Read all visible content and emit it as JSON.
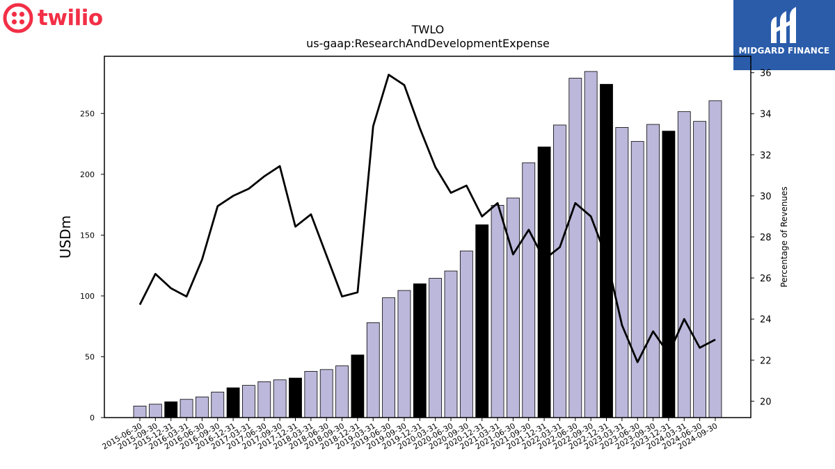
{
  "logos": {
    "company": {
      "text": "twilio",
      "color": "#f22f46"
    },
    "publisher": {
      "text": "MIDGARD FINANCE",
      "color": "#2a5caa"
    }
  },
  "chart_data": {
    "type": "bar",
    "title": "TWLO",
    "subtitle": "us-gaap:ResearchAndDevelopmentExpense",
    "ylabel": "USDm",
    "y2label": "Percentage of Revenues",
    "ylim": [
      0,
      297
    ],
    "y2lim": [
      19.2,
      36.8
    ],
    "yticks": [
      0,
      50,
      100,
      150,
      200,
      250
    ],
    "y2ticks": [
      20,
      22,
      24,
      26,
      28,
      30,
      32,
      34,
      36
    ],
    "grid": false,
    "colors": {
      "bar": "#bcb8db",
      "bar_q4": "#000000",
      "line": "#000000"
    },
    "categories": [
      "2015-06-30",
      "2015-09-30",
      "2015-12-31",
      "2016-03-31",
      "2016-06-30",
      "2016-09-30",
      "2016-12-31",
      "2017-03-31",
      "2017-06-30",
      "2017-09-30",
      "2017-12-31",
      "2018-03-31",
      "2018-06-30",
      "2018-09-30",
      "2018-12-31",
      "2019-03-31",
      "2019-06-30",
      "2019-09-30",
      "2019-12-31",
      "2020-03-31",
      "2020-06-30",
      "2020-09-30",
      "2020-12-31",
      "2021-03-31",
      "2021-06-30",
      "2021-09-30",
      "2021-12-31",
      "2022-03-31",
      "2022-06-30",
      "2022-09-30",
      "2022-12-31",
      "2023-03-31",
      "2023-06-30",
      "2023-09-30",
      "2023-12-31",
      "2024-03-31",
      "2024-06-30",
      "2024-09-30"
    ],
    "series": [
      {
        "values": [
          9.5,
          11,
          13,
          15,
          17,
          21,
          24.5,
          26.5,
          29.5,
          31,
          32.5,
          38,
          39.5,
          42.5,
          51.5,
          78,
          98.5,
          104.5,
          110,
          114.5,
          120.5,
          137,
          158.5,
          174.5,
          180.5,
          209.5,
          222.5,
          240.5,
          279,
          284.5,
          274,
          238.5,
          227,
          241,
          235.5,
          251.5,
          243.5,
          260.5
        ],
        "q4_highlight": [
          false,
          false,
          true,
          false,
          false,
          false,
          true,
          false,
          false,
          false,
          true,
          false,
          false,
          false,
          true,
          false,
          false,
          false,
          true,
          false,
          false,
          false,
          true,
          false,
          false,
          false,
          true,
          false,
          false,
          false,
          true,
          false,
          false,
          false,
          true,
          false,
          false,
          false
        ]
      },
      {
        "axis": "right",
        "type": "line",
        "values": [
          24.7,
          26.2,
          25.5,
          25.1,
          26.9,
          29.5,
          30.0,
          30.35,
          30.95,
          31.45,
          28.5,
          29.1,
          27.1,
          25.1,
          25.3,
          33.4,
          35.9,
          35.4,
          33.3,
          31.4,
          30.15,
          30.5,
          29.0,
          29.65,
          27.15,
          28.35,
          26.9,
          27.5,
          29.65,
          29.0,
          27.0,
          23.7,
          21.9,
          23.4,
          22.3,
          24.0,
          22.6,
          23.0
        ]
      }
    ]
  }
}
